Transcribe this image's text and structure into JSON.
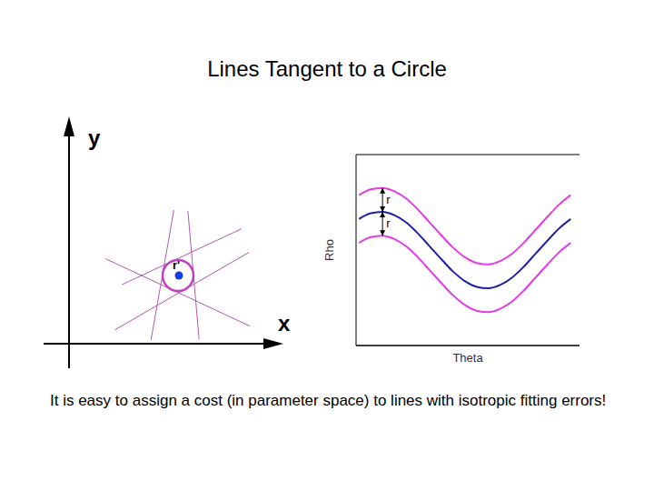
{
  "title": "Lines Tangent to a Circle",
  "caption": "It is easy to assign a cost (in parameter space) to lines with isotropic fitting errors!",
  "diagram": {
    "x_label": "x",
    "y_label": "y",
    "point_label": "r'"
  },
  "chart_data": {
    "type": "line",
    "x_label": "Theta",
    "y_label": "Rho",
    "x": [
      0,
      20,
      40,
      60,
      80,
      100,
      120,
      140,
      160,
      180,
      200,
      220,
      240,
      260,
      280,
      300,
      320,
      340,
      360
    ],
    "series": [
      {
        "color": "#e33ce3",
        "values": [
          1.15,
          1.27,
          1.3,
          1.23,
          1.08,
          0.85,
          0.58,
          0.31,
          0.05,
          -0.15,
          -0.27,
          -0.3,
          -0.23,
          -0.08,
          0.15,
          0.42,
          0.69,
          0.95,
          1.15
        ]
      },
      {
        "color": "#1f1fa8",
        "values": [
          0.65,
          0.77,
          0.8,
          0.73,
          0.58,
          0.35,
          0.08,
          -0.19,
          -0.45,
          -0.65,
          -0.77,
          -0.8,
          -0.73,
          -0.58,
          -0.35,
          -0.08,
          0.19,
          0.45,
          0.65
        ]
      },
      {
        "color": "#e33ce3",
        "values": [
          0.15,
          0.27,
          0.3,
          0.23,
          0.08,
          -0.15,
          -0.42,
          -0.69,
          -0.95,
          -1.15,
          -1.27,
          -1.3,
          -1.23,
          -1.08,
          -0.85,
          -0.58,
          -0.31,
          -0.05,
          0.15
        ]
      }
    ],
    "xlim": [
      -5,
      375
    ],
    "ylim": [
      -2,
      2
    ],
    "yticks": [
      0
    ],
    "grid": true,
    "tick_labels": false,
    "annotations": [
      {
        "text": "r",
        "x": 40,
        "y1": 0.8,
        "y2": 1.3
      },
      {
        "text": "r",
        "x": 40,
        "y1": 0.3,
        "y2": 0.8
      }
    ]
  }
}
